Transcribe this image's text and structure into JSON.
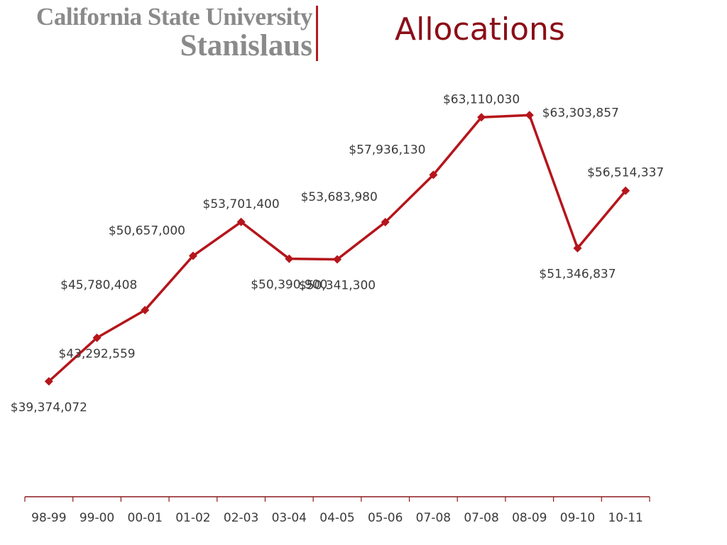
{
  "header": {
    "logo_line1": "California State University",
    "logo_line2": "Stanislaus",
    "title": "Allocations"
  },
  "colors": {
    "series": "#b5151b",
    "title": "#8b0e17",
    "axis": "#8b1a1f",
    "logo": "#8a8a8a"
  },
  "chart_data": {
    "type": "line",
    "categories": [
      "98-99",
      "99-00",
      "00-01",
      "01-02",
      "02-03",
      "03-04",
      "04-05",
      "05-06",
      "07-08",
      "07-08",
      "08-09",
      "09-10",
      "10-11"
    ],
    "values": [
      39374072,
      43292559,
      45780408,
      50657000,
      53701400,
      50390900,
      50341300,
      53683980,
      57936130,
      63110030,
      63303857,
      51346837,
      56514337
    ],
    "data_labels": [
      "$39,374,072",
      "$43,292,559",
      "$45,780,408",
      "$50,657,000",
      "$53,701,400",
      "$50,390,900",
      "$50,341,300",
      "$53,683,980",
      "$57,936,130",
      "$63,110,030",
      "$63,303,857",
      "$51,346,837",
      "$56,514,337"
    ],
    "label_positions": [
      "below",
      "below-right",
      "above-left",
      "above-left",
      "above",
      "below",
      "below",
      "above-left",
      "above-left",
      "above",
      "right",
      "below",
      "above"
    ],
    "ylim": [
      29000000,
      66000000
    ],
    "marker": "diamond",
    "grid": false,
    "legend": "none",
    "title": "",
    "xlabel": "",
    "ylabel": ""
  }
}
